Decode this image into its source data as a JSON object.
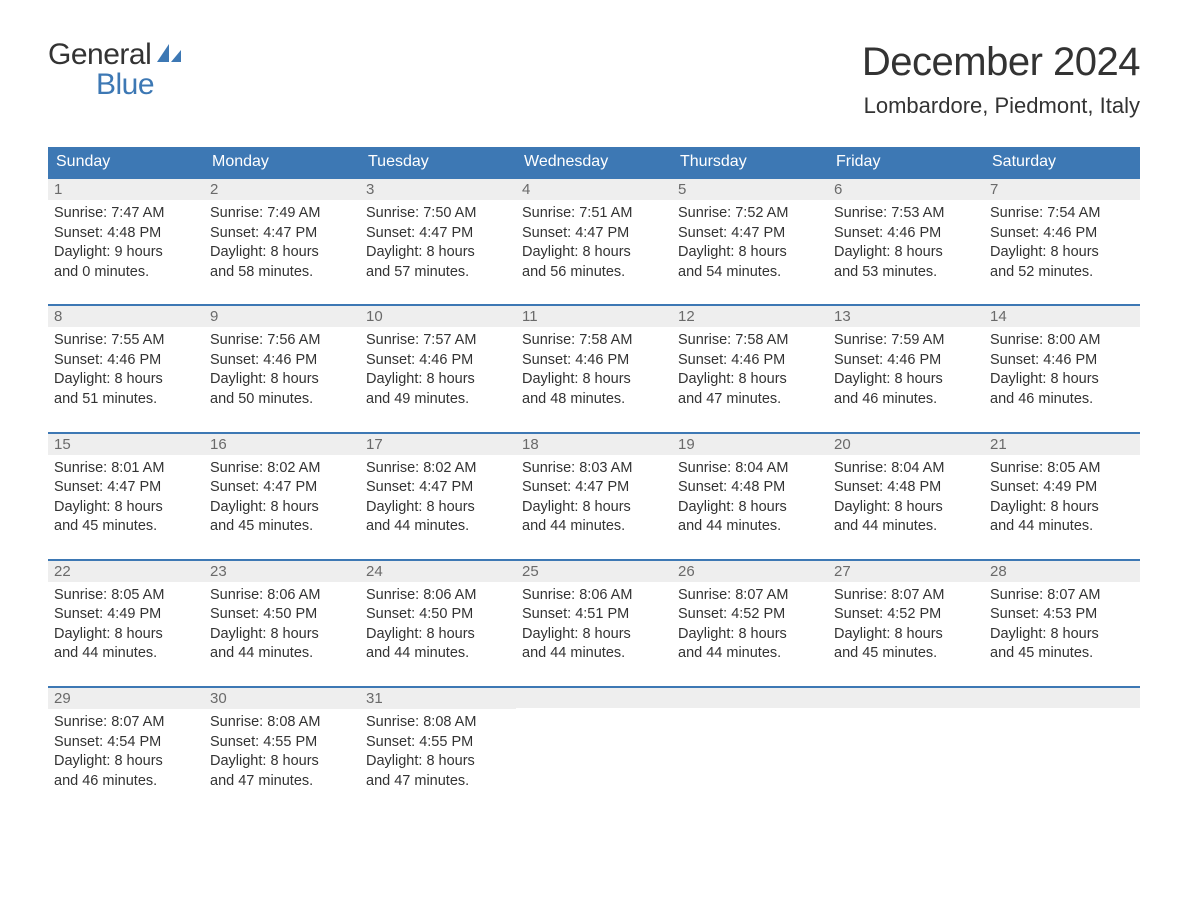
{
  "logo": {
    "general": "General",
    "blue": "Blue"
  },
  "title": "December 2024",
  "location": "Lombardore, Piedmont, Italy",
  "colors": {
    "header_bg": "#3d78b4",
    "header_text": "#ffffff",
    "daynum_bg": "#eeeeee",
    "daynum_border": "#3d78b4",
    "text": "#333333",
    "logo_blue": "#3d78b4"
  },
  "day_headers": [
    "Sunday",
    "Monday",
    "Tuesday",
    "Wednesday",
    "Thursday",
    "Friday",
    "Saturday"
  ],
  "weeks": [
    [
      {
        "n": "1",
        "sunrise": "7:47 AM",
        "sunset": "4:48 PM",
        "dl1": "9 hours",
        "dl2": "and 0 minutes."
      },
      {
        "n": "2",
        "sunrise": "7:49 AM",
        "sunset": "4:47 PM",
        "dl1": "8 hours",
        "dl2": "and 58 minutes."
      },
      {
        "n": "3",
        "sunrise": "7:50 AM",
        "sunset": "4:47 PM",
        "dl1": "8 hours",
        "dl2": "and 57 minutes."
      },
      {
        "n": "4",
        "sunrise": "7:51 AM",
        "sunset": "4:47 PM",
        "dl1": "8 hours",
        "dl2": "and 56 minutes."
      },
      {
        "n": "5",
        "sunrise": "7:52 AM",
        "sunset": "4:47 PM",
        "dl1": "8 hours",
        "dl2": "and 54 minutes."
      },
      {
        "n": "6",
        "sunrise": "7:53 AM",
        "sunset": "4:46 PM",
        "dl1": "8 hours",
        "dl2": "and 53 minutes."
      },
      {
        "n": "7",
        "sunrise": "7:54 AM",
        "sunset": "4:46 PM",
        "dl1": "8 hours",
        "dl2": "and 52 minutes."
      }
    ],
    [
      {
        "n": "8",
        "sunrise": "7:55 AM",
        "sunset": "4:46 PM",
        "dl1": "8 hours",
        "dl2": "and 51 minutes."
      },
      {
        "n": "9",
        "sunrise": "7:56 AM",
        "sunset": "4:46 PM",
        "dl1": "8 hours",
        "dl2": "and 50 minutes."
      },
      {
        "n": "10",
        "sunrise": "7:57 AM",
        "sunset": "4:46 PM",
        "dl1": "8 hours",
        "dl2": "and 49 minutes."
      },
      {
        "n": "11",
        "sunrise": "7:58 AM",
        "sunset": "4:46 PM",
        "dl1": "8 hours",
        "dl2": "and 48 minutes."
      },
      {
        "n": "12",
        "sunrise": "7:58 AM",
        "sunset": "4:46 PM",
        "dl1": "8 hours",
        "dl2": "and 47 minutes."
      },
      {
        "n": "13",
        "sunrise": "7:59 AM",
        "sunset": "4:46 PM",
        "dl1": "8 hours",
        "dl2": "and 46 minutes."
      },
      {
        "n": "14",
        "sunrise": "8:00 AM",
        "sunset": "4:46 PM",
        "dl1": "8 hours",
        "dl2": "and 46 minutes."
      }
    ],
    [
      {
        "n": "15",
        "sunrise": "8:01 AM",
        "sunset": "4:47 PM",
        "dl1": "8 hours",
        "dl2": "and 45 minutes."
      },
      {
        "n": "16",
        "sunrise": "8:02 AM",
        "sunset": "4:47 PM",
        "dl1": "8 hours",
        "dl2": "and 45 minutes."
      },
      {
        "n": "17",
        "sunrise": "8:02 AM",
        "sunset": "4:47 PM",
        "dl1": "8 hours",
        "dl2": "and 44 minutes."
      },
      {
        "n": "18",
        "sunrise": "8:03 AM",
        "sunset": "4:47 PM",
        "dl1": "8 hours",
        "dl2": "and 44 minutes."
      },
      {
        "n": "19",
        "sunrise": "8:04 AM",
        "sunset": "4:48 PM",
        "dl1": "8 hours",
        "dl2": "and 44 minutes."
      },
      {
        "n": "20",
        "sunrise": "8:04 AM",
        "sunset": "4:48 PM",
        "dl1": "8 hours",
        "dl2": "and 44 minutes."
      },
      {
        "n": "21",
        "sunrise": "8:05 AM",
        "sunset": "4:49 PM",
        "dl1": "8 hours",
        "dl2": "and 44 minutes."
      }
    ],
    [
      {
        "n": "22",
        "sunrise": "8:05 AM",
        "sunset": "4:49 PM",
        "dl1": "8 hours",
        "dl2": "and 44 minutes."
      },
      {
        "n": "23",
        "sunrise": "8:06 AM",
        "sunset": "4:50 PM",
        "dl1": "8 hours",
        "dl2": "and 44 minutes."
      },
      {
        "n": "24",
        "sunrise": "8:06 AM",
        "sunset": "4:50 PM",
        "dl1": "8 hours",
        "dl2": "and 44 minutes."
      },
      {
        "n": "25",
        "sunrise": "8:06 AM",
        "sunset": "4:51 PM",
        "dl1": "8 hours",
        "dl2": "and 44 minutes."
      },
      {
        "n": "26",
        "sunrise": "8:07 AM",
        "sunset": "4:52 PM",
        "dl1": "8 hours",
        "dl2": "and 44 minutes."
      },
      {
        "n": "27",
        "sunrise": "8:07 AM",
        "sunset": "4:52 PM",
        "dl1": "8 hours",
        "dl2": "and 45 minutes."
      },
      {
        "n": "28",
        "sunrise": "8:07 AM",
        "sunset": "4:53 PM",
        "dl1": "8 hours",
        "dl2": "and 45 minutes."
      }
    ],
    [
      {
        "n": "29",
        "sunrise": "8:07 AM",
        "sunset": "4:54 PM",
        "dl1": "8 hours",
        "dl2": "and 46 minutes."
      },
      {
        "n": "30",
        "sunrise": "8:08 AM",
        "sunset": "4:55 PM",
        "dl1": "8 hours",
        "dl2": "and 47 minutes."
      },
      {
        "n": "31",
        "sunrise": "8:08 AM",
        "sunset": "4:55 PM",
        "dl1": "8 hours",
        "dl2": "and 47 minutes."
      },
      null,
      null,
      null,
      null
    ]
  ],
  "labels": {
    "sunrise": "Sunrise: ",
    "sunset": "Sunset: ",
    "daylight": "Daylight: "
  }
}
